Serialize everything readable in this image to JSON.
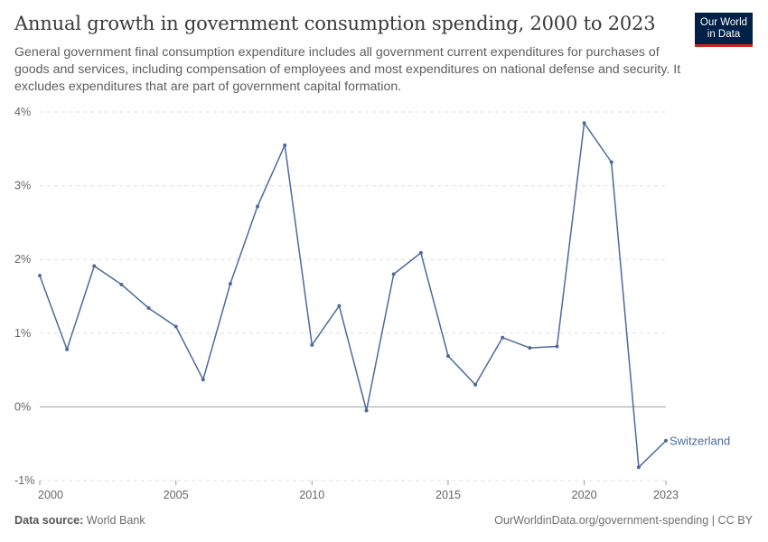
{
  "header": {
    "title": "Annual growth in government consumption spending, 2000 to 2023",
    "subtitle": "General government final consumption expenditure includes all government current expenditures for purchases of goods and services, including compensation of employees and most expenditures on national defense and security. It excludes expenditures that are part of government capital formation."
  },
  "logo": {
    "line1": "Our World",
    "line2": "in Data",
    "bg": "#002147",
    "accent": "#ce261e"
  },
  "footer": {
    "source_label": "Data source:",
    "source_value": "World Bank",
    "credit": "OurWorldinData.org/government-spending | CC BY"
  },
  "colors": {
    "series": "#4c6a9c",
    "grid": "#dddddd",
    "zero_line": "#a0a0a0",
    "title": "#3a3a3a"
  },
  "chart_data": {
    "type": "line",
    "x": [
      2000,
      2001,
      2002,
      2003,
      2004,
      2005,
      2006,
      2007,
      2008,
      2009,
      2010,
      2011,
      2012,
      2013,
      2014,
      2015,
      2016,
      2017,
      2018,
      2019,
      2020,
      2021,
      2022,
      2023
    ],
    "series": [
      {
        "name": "Switzerland",
        "values": [
          1.78,
          0.78,
          1.91,
          1.66,
          1.34,
          1.09,
          0.37,
          1.67,
          2.72,
          3.55,
          0.84,
          1.37,
          -0.05,
          1.8,
          2.09,
          0.69,
          0.3,
          0.94,
          0.8,
          0.82,
          3.85,
          3.32,
          -0.82,
          -0.46
        ]
      }
    ],
    "y_ticks": [
      -1,
      0,
      1,
      2,
      3,
      4
    ],
    "y_tick_labels": [
      "-1%",
      "0%",
      "1%",
      "2%",
      "3%",
      "4%"
    ],
    "x_ticks": [
      2000,
      2005,
      2010,
      2015,
      2020,
      2023
    ],
    "ylim": [
      -1,
      4
    ],
    "xlim": [
      2000,
      2023
    ],
    "grid": "horizontal dashed",
    "legend": "inline label at line end"
  }
}
